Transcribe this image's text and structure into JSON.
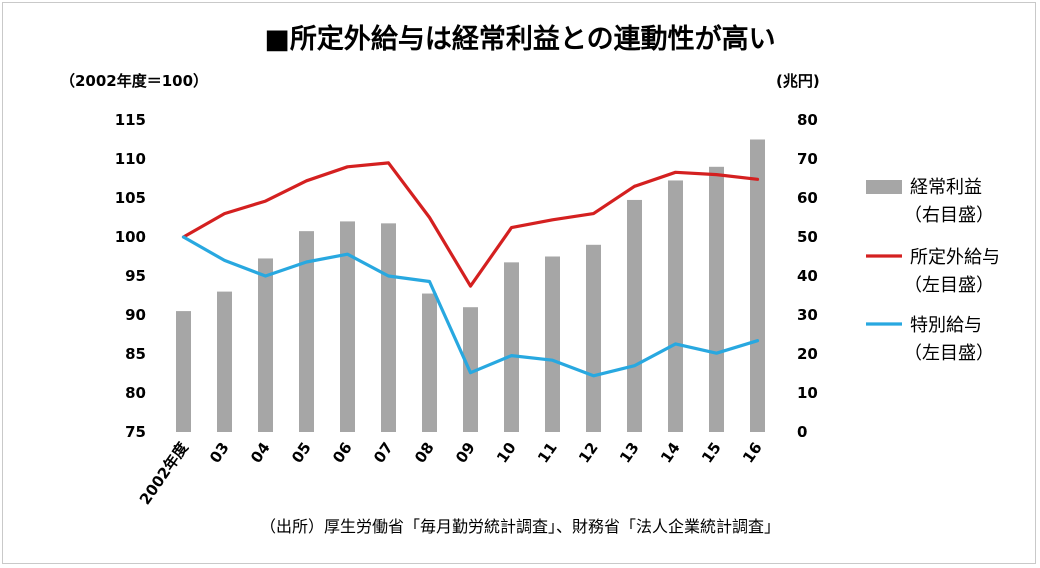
{
  "chart_data": {
    "type": "bar+line",
    "title": "■所定外給与は経常利益との連動性が高い",
    "left_axis_label": "（2002年度＝100）",
    "right_axis_label": "(兆円)",
    "left_ylim": [
      75,
      115
    ],
    "left_ticks": [
      "115",
      "110",
      "105",
      "100",
      "95",
      "90",
      "85",
      "80",
      "75"
    ],
    "right_ylim": [
      0,
      80
    ],
    "right_ticks": [
      "80",
      "70",
      "60",
      "50",
      "40",
      "30",
      "20",
      "10",
      "0"
    ],
    "categories": [
      "2002年度",
      "03",
      "04",
      "05",
      "06",
      "07",
      "08",
      "09",
      "10",
      "11",
      "12",
      "13",
      "14",
      "15",
      "16"
    ],
    "series": [
      {
        "name": "経常利益",
        "axis_note": "（右目盛）",
        "type": "bar",
        "axis": "right",
        "color": "#a6a6a6",
        "values": [
          31,
          36,
          44.5,
          51.5,
          54,
          53.5,
          35.5,
          32,
          43.5,
          45,
          48,
          59.5,
          64.5,
          68,
          75
        ]
      },
      {
        "name": "所定外給与",
        "axis_note": "（左目盛）",
        "type": "line",
        "axis": "left",
        "color": "#d42020",
        "values": [
          100,
          103,
          104.6,
          107.2,
          109,
          109.5,
          102.5,
          93.7,
          101.2,
          102.2,
          103,
          106.5,
          108.3,
          108,
          107.4
        ]
      },
      {
        "name": "特別給与",
        "axis_note": "（左目盛）",
        "type": "line",
        "axis": "left",
        "color": "#28a8e0",
        "values": [
          100,
          97,
          95,
          96.8,
          97.8,
          95,
          94.3,
          82.6,
          84.8,
          84.2,
          82.2,
          83.5,
          86.3,
          85.1,
          86.7
        ]
      }
    ],
    "grid": false,
    "legend_position": "right"
  },
  "source": "（出所）厚生労働省「毎月勤労統計調査」、財務省「法人企業統計調査」"
}
